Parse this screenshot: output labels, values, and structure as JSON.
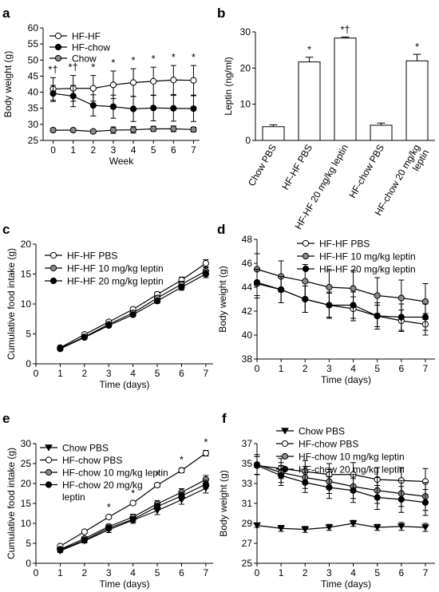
{
  "panel_letters": [
    "a",
    "b",
    "c",
    "d",
    "e",
    "f"
  ],
  "chart_data": [
    {
      "panel": "a",
      "type": "line",
      "xlabel": "Week",
      "ylabel": "Body weight (g)",
      "x": [
        0,
        1,
        2,
        3,
        4,
        5,
        6,
        7
      ],
      "xticks": [
        "0",
        "1",
        "2",
        "3",
        "4",
        "5",
        "6",
        "7"
      ],
      "ylim": [
        25,
        60
      ],
      "yticks": [
        "25",
        "30",
        "35",
        "40",
        "45",
        "50",
        "55",
        "60"
      ],
      "legend_position": "top-left",
      "series": [
        {
          "name": "HF-HF",
          "marker": "open-circle",
          "values": [
            41.0,
            41.2,
            41.2,
            42.3,
            43.0,
            43.4,
            43.8,
            43.7
          ],
          "errors": [
            3.5,
            4.0,
            4.0,
            4.3,
            4.3,
            4.4,
            4.5,
            4.6
          ]
        },
        {
          "name": "HF-chow",
          "marker": "filled-circle",
          "values": [
            39.6,
            38.8,
            35.9,
            35.5,
            34.8,
            35.1,
            35.0,
            34.9
          ],
          "errors": [
            2.5,
            3.3,
            3.3,
            3.6,
            3.9,
            4.0,
            4.0,
            4.0
          ]
        },
        {
          "name": "Chow",
          "marker": "gray-circle",
          "values": [
            28.2,
            28.2,
            27.8,
            28.2,
            28.3,
            28.6,
            28.6,
            28.4
          ],
          "errors": [
            0.6,
            0.5,
            0.5,
            1.0,
            1.0,
            0.8,
            0.9,
            0.7
          ]
        }
      ],
      "annotations": [
        "*†",
        "*†",
        "*",
        "*",
        "*",
        "*",
        "*",
        "*"
      ]
    },
    {
      "panel": "b",
      "type": "bar",
      "ylabel": "Leptin (ng/ml)",
      "categories": [
        "Chow PBS",
        "HF-HF PBS",
        "HF-HF 20 mg/kg leptin",
        "HF-chow PBS",
        "HF-chow 20 mg/kg leptin"
      ],
      "category_lines": [
        [
          "Chow PBS"
        ],
        [
          "HF-HF PBS"
        ],
        [
          "HF-HF 20 mg/kg leptin"
        ],
        [
          "HF-chow PBS"
        ],
        [
          "HF-chow 20 mg/kg",
          "leptin"
        ]
      ],
      "values": [
        3.8,
        21.7,
        28.3,
        4.2,
        22.0
      ],
      "errors": [
        0.5,
        1.3,
        0.3,
        0.6,
        1.8
      ],
      "ylim": [
        0,
        30
      ],
      "yticks": [
        "0",
        "10",
        "20",
        "30"
      ],
      "annotations": [
        "",
        "*",
        "*†",
        "",
        "*"
      ]
    },
    {
      "panel": "c",
      "type": "line",
      "xlabel": "Time (days)",
      "ylabel": "Cumulative food intake (g)",
      "x": [
        1,
        2,
        3,
        4,
        5,
        6,
        7
      ],
      "xticks": [
        "0",
        "1",
        "2",
        "3",
        "4",
        "5",
        "6",
        "7"
      ],
      "ylim": [
        0,
        20
      ],
      "yticks": [
        "0",
        "5",
        "10",
        "15",
        "20"
      ],
      "legend_position": "top-left",
      "series": [
        {
          "name": "HF-HF PBS",
          "marker": "open-circle",
          "values": [
            2.7,
            4.9,
            7.0,
            9.1,
            11.6,
            14.0,
            16.8
          ],
          "errors": [
            0.2,
            0.2,
            0.3,
            0.3,
            0.4,
            0.5,
            0.6
          ]
        },
        {
          "name": "HF-HF 10 mg/kg leptin",
          "marker": "gray-circle",
          "values": [
            2.6,
            4.5,
            6.6,
            8.5,
            11.0,
            13.3,
            15.5
          ],
          "errors": [
            0.2,
            0.2,
            0.3,
            0.3,
            0.4,
            0.5,
            0.6
          ]
        },
        {
          "name": "HF-HF 20 mg/kg leptin",
          "marker": "filled-circle",
          "values": [
            2.5,
            4.4,
            6.4,
            8.2,
            10.5,
            12.8,
            15.0
          ],
          "errors": [
            0.2,
            0.2,
            0.3,
            0.3,
            0.4,
            0.5,
            0.6
          ]
        }
      ]
    },
    {
      "panel": "d",
      "type": "line",
      "xlabel": "Time (days)",
      "ylabel": "Body weight (g)",
      "x": [
        0,
        1,
        2,
        3,
        4,
        5,
        6,
        7
      ],
      "xticks": [
        "0",
        "1",
        "2",
        "3",
        "4",
        "5",
        "6",
        "7"
      ],
      "ylim": [
        38,
        48
      ],
      "yticks": [
        "38",
        "40",
        "42",
        "44",
        "46",
        "48"
      ],
      "legend_position": "top-right",
      "series": [
        {
          "name": "HF-HF PBS",
          "marker": "open-circle",
          "values": [
            44.3,
            43.8,
            43.0,
            42.5,
            42.2,
            41.6,
            41.2,
            40.9
          ],
          "errors": [
            1.2,
            1.1,
            1.1,
            1.0,
            1.0,
            0.9,
            0.9,
            0.9
          ]
        },
        {
          "name": "HF-HF 10 mg/kg leptin",
          "marker": "gray-circle",
          "values": [
            45.5,
            44.9,
            44.5,
            44.0,
            43.9,
            43.3,
            43.1,
            42.8
          ],
          "errors": [
            1.3,
            1.3,
            1.4,
            1.4,
            1.5,
            1.5,
            1.5,
            1.5
          ]
        },
        {
          "name": "HF-HF 20 mg/kg leptin",
          "marker": "filled-circle",
          "values": [
            44.4,
            43.8,
            43.0,
            42.5,
            42.5,
            41.6,
            41.5,
            41.5
          ],
          "errors": [
            1.1,
            1.1,
            1.1,
            1.1,
            1.1,
            1.1,
            1.1,
            1.1
          ]
        }
      ]
    },
    {
      "panel": "e",
      "type": "line",
      "xlabel": "Time (days)",
      "ylabel": "Cumulative food intake (g)",
      "x": [
        1,
        2,
        3,
        4,
        5,
        6,
        7
      ],
      "xticks": [
        "0",
        "1",
        "2",
        "3",
        "4",
        "5",
        "6",
        "7"
      ],
      "ylim": [
        0,
        30
      ],
      "yticks": [
        "0",
        "5",
        "10",
        "15",
        "20",
        "25",
        "30"
      ],
      "legend_position": "top-left",
      "series": [
        {
          "name": "Chow PBS",
          "marker": "filled-triangle-down",
          "values": [
            3.1,
            5.6,
            8.4,
            10.8,
            13.2,
            15.9,
            18.8
          ],
          "errors": [
            0.4,
            0.5,
            0.7,
            0.8,
            1.0,
            1.1,
            1.2
          ]
        },
        {
          "name": "HF-chow PBS",
          "marker": "open-circle",
          "values": [
            4.3,
            7.9,
            11.6,
            15.1,
            19.6,
            23.3,
            27.6
          ],
          "errors": [
            0.3,
            0.3,
            0.4,
            0.4,
            0.5,
            0.6,
            0.7
          ]
        },
        {
          "name": "HF-chow 10 mg/kg leptin",
          "marker": "gray-circle",
          "values": [
            3.5,
            6.2,
            9.2,
            11.6,
            14.9,
            17.8,
            21.0
          ],
          "errors": [
            0.4,
            0.5,
            0.6,
            0.7,
            0.8,
            0.9,
            1.0
          ]
        },
        {
          "name": "HF-chow 20 mg/kg leptin",
          "name_lines": [
            "HF-chow 20 mg/kg",
            "leptin"
          ],
          "marker": "filled-circle",
          "values": [
            3.3,
            5.8,
            8.8,
            11.0,
            14.2,
            16.9,
            19.8
          ],
          "errors": [
            0.4,
            0.5,
            0.6,
            0.7,
            0.8,
            0.9,
            1.0
          ]
        }
      ],
      "annotation_x": [
        3,
        4,
        5,
        6,
        7
      ],
      "annotations": [
        "*",
        "*",
        "*",
        "*",
        "*"
      ]
    },
    {
      "panel": "f",
      "type": "line",
      "xlabel": "Time (days)",
      "ylabel": "Body weight (g)",
      "x": [
        0,
        1,
        2,
        3,
        4,
        5,
        6,
        7
      ],
      "xticks": [
        "0",
        "1",
        "2",
        "3",
        "4",
        "5",
        "6",
        "7"
      ],
      "ylim": [
        25,
        37
      ],
      "yticks": [
        "25",
        "27",
        "29",
        "31",
        "33",
        "35",
        "37"
      ],
      "legend_position": "top",
      "series": [
        {
          "name": "Chow PBS",
          "marker": "filled-triangle-down",
          "values": [
            28.8,
            28.5,
            28.4,
            28.6,
            29.0,
            28.6,
            28.7,
            28.6
          ],
          "errors": [
            0.2,
            0.3,
            0.3,
            0.3,
            0.3,
            0.3,
            0.4,
            0.4
          ]
        },
        {
          "name": "HF-chow PBS",
          "marker": "open-circle",
          "values": [
            34.8,
            34.5,
            34.2,
            33.9,
            33.9,
            33.4,
            33.3,
            33.2
          ],
          "errors": [
            0.9,
            1.0,
            1.1,
            1.1,
            1.2,
            1.2,
            1.3,
            1.3
          ]
        },
        {
          "name": "HF-chow 10 mg/kg leptin",
          "marker": "gray-circle",
          "values": [
            34.9,
            34.1,
            33.6,
            33.2,
            32.7,
            32.3,
            32.0,
            31.7
          ],
          "errors": [
            1.0,
            1.0,
            1.1,
            1.2,
            1.2,
            1.3,
            1.3,
            1.4
          ]
        },
        {
          "name": "HF-chow 20 mg/kg leptin",
          "marker": "filled-circle",
          "values": [
            34.8,
            33.8,
            33.1,
            32.6,
            32.3,
            31.6,
            31.4,
            31.1
          ],
          "errors": [
            0.9,
            1.0,
            1.0,
            1.1,
            1.2,
            1.2,
            1.3,
            1.3
          ]
        }
      ]
    }
  ]
}
